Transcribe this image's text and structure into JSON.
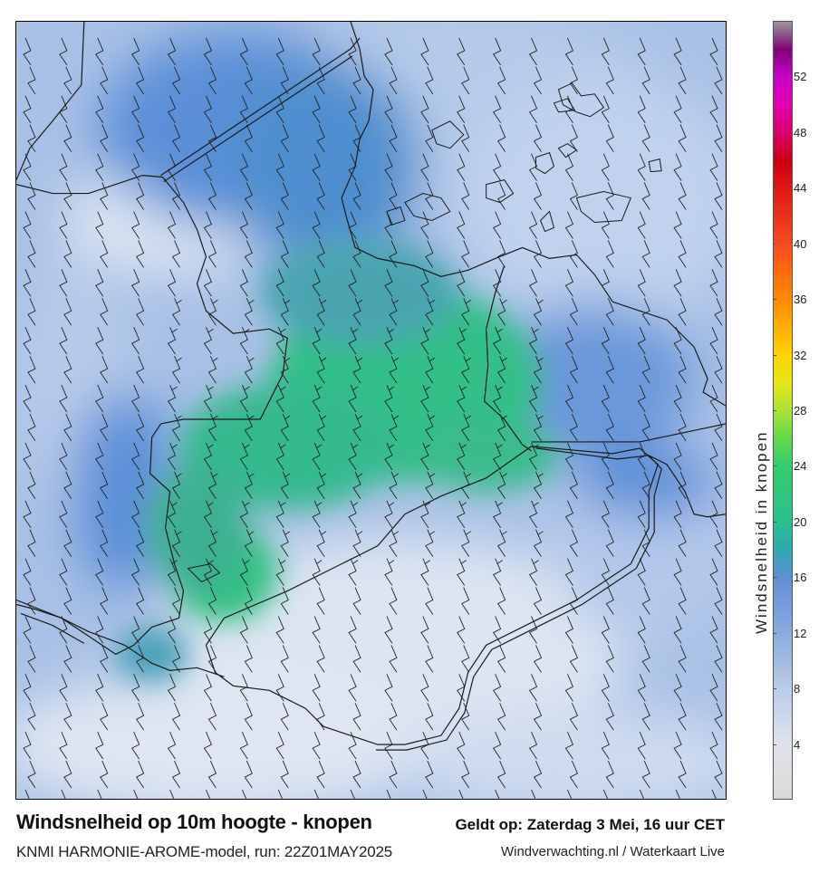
{
  "title": "Windsnelheid op 10m hoogte - knopen",
  "subtitle": "KNMI HARMONIE-AROME-model, run: 22Z01MAY2025",
  "valid_time": "Geldt op: Zaterdag 3 Mei, 16 uur CET",
  "credit": "Windverwachting.nl / Waterkaart Live",
  "colorbar": {
    "label": "Windsnelheid in knopen",
    "ticks": [
      "4",
      "8",
      "12",
      "16",
      "20",
      "24",
      "28",
      "32",
      "36",
      "40",
      "44",
      "48",
      "52"
    ],
    "min": 0,
    "max": 56,
    "stops": [
      {
        "v": 0,
        "color": "#d9d9d9"
      },
      {
        "v": 4,
        "color": "#dfe3ea"
      },
      {
        "v": 8,
        "color": "#b9cbea"
      },
      {
        "v": 12,
        "color": "#8aaade"
      },
      {
        "v": 16,
        "color": "#5f8fd6"
      },
      {
        "v": 18,
        "color": "#2fa6b0"
      },
      {
        "v": 20,
        "color": "#2bbf8e"
      },
      {
        "v": 24,
        "color": "#35cd6a"
      },
      {
        "v": 26,
        "color": "#63d94a"
      },
      {
        "v": 28,
        "color": "#a9e23a"
      },
      {
        "v": 30,
        "color": "#e8e61a"
      },
      {
        "v": 32,
        "color": "#ffd200"
      },
      {
        "v": 34,
        "color": "#ffae00"
      },
      {
        "v": 36,
        "color": "#ff8a00"
      },
      {
        "v": 38,
        "color": "#ff6a10"
      },
      {
        "v": 40,
        "color": "#f54a20"
      },
      {
        "v": 44,
        "color": "#e01818"
      },
      {
        "v": 46,
        "color": "#c80010"
      },
      {
        "v": 48,
        "color": "#d6006a"
      },
      {
        "v": 50,
        "color": "#e000b0"
      },
      {
        "v": 52,
        "color": "#c800c8"
      },
      {
        "v": 54,
        "color": "#80007a"
      },
      {
        "v": 56,
        "color": "#999999"
      }
    ]
  },
  "map": {
    "background_color": "#a9c1e6",
    "strong_wind_color": "#30c58a",
    "medium_wind_color": "#5b8fd8",
    "calm_color": "#dde5f2",
    "coastline_color": "#1a1a1a",
    "barb_color": "#222222"
  }
}
